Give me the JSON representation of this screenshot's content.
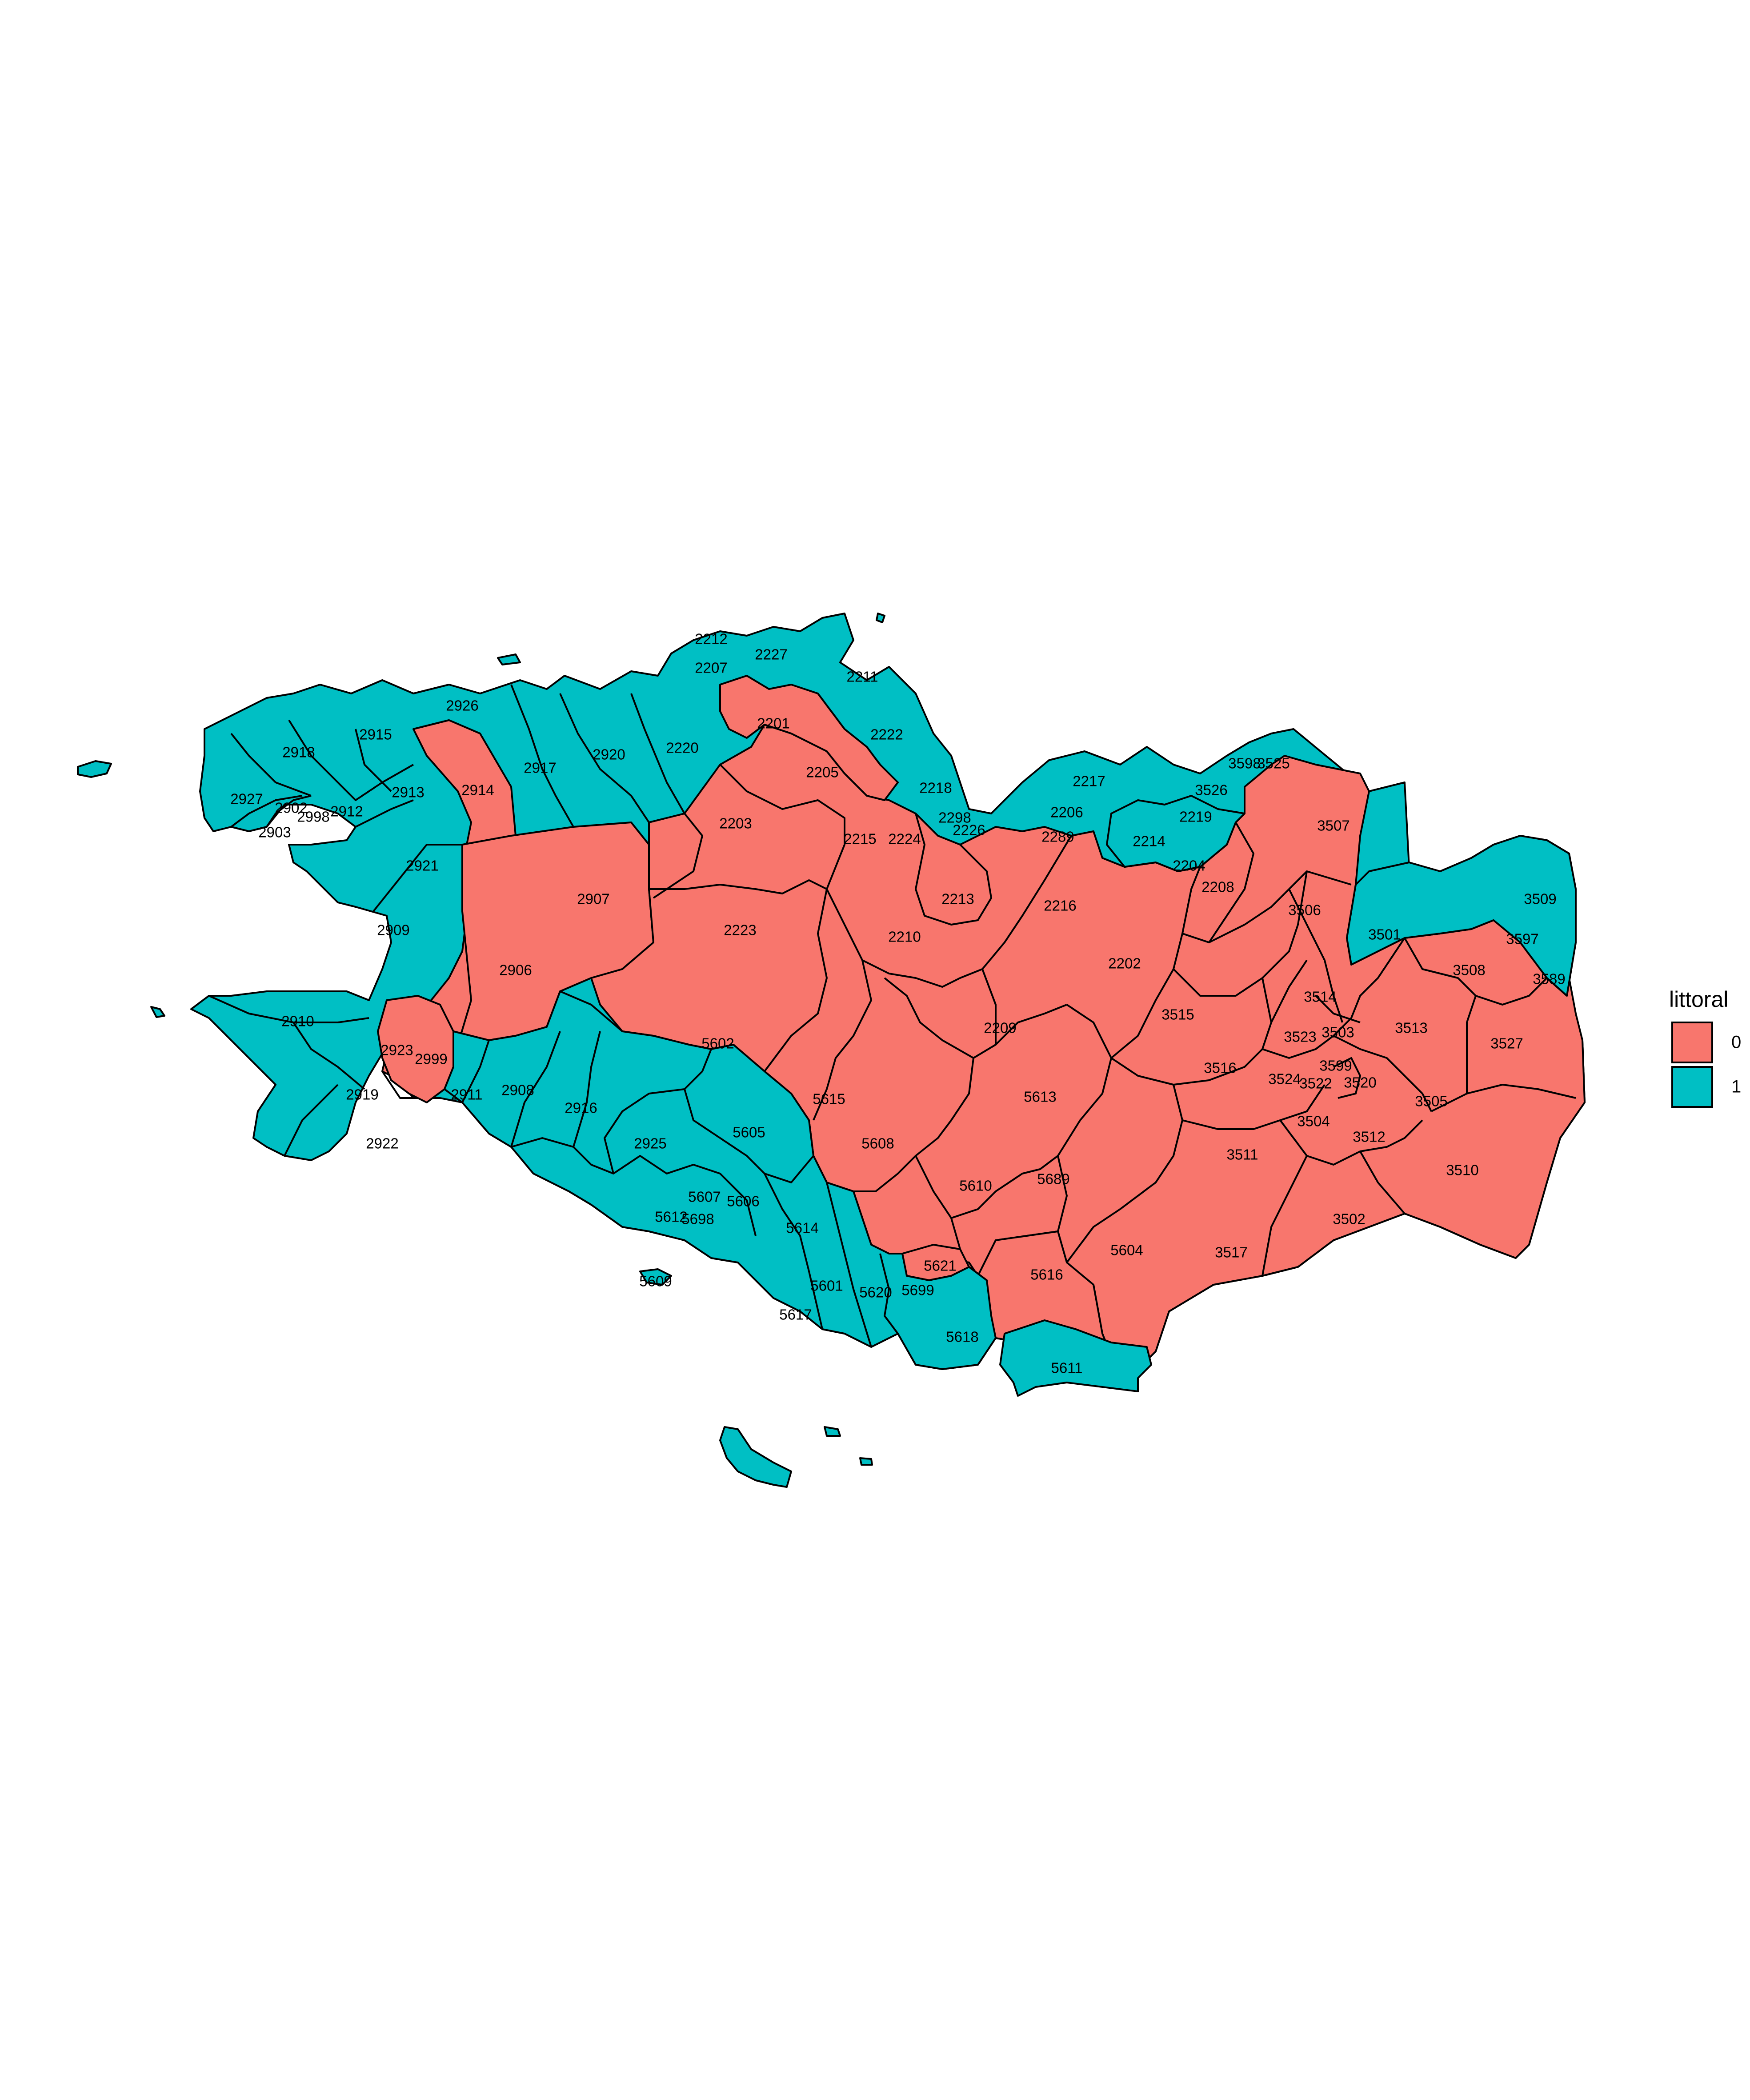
{
  "legend": {
    "title": "littoral",
    "entries": [
      {
        "label": "0",
        "color": "#F8766D"
      },
      {
        "label": "1",
        "color": "#00BFC4"
      }
    ]
  },
  "map": {
    "colors": {
      "0": "#F8766D",
      "1": "#00BFC4"
    },
    "regions": [
      {
        "code": "2212",
        "littoral": 1
      },
      {
        "code": "2227",
        "littoral": 1
      },
      {
        "code": "2207",
        "littoral": 1
      },
      {
        "code": "2211",
        "littoral": 1
      },
      {
        "code": "2201",
        "littoral": 0
      },
      {
        "code": "2222",
        "littoral": 1
      },
      {
        "code": "2205",
        "littoral": 0
      },
      {
        "code": "2926",
        "littoral": 1
      },
      {
        "code": "2915",
        "littoral": 1
      },
      {
        "code": "2918",
        "littoral": 1
      },
      {
        "code": "2917",
        "littoral": 1
      },
      {
        "code": "2920",
        "littoral": 1
      },
      {
        "code": "2220",
        "littoral": 1
      },
      {
        "code": "2914",
        "littoral": 0
      },
      {
        "code": "2913",
        "littoral": 1
      },
      {
        "code": "2927",
        "littoral": 1
      },
      {
        "code": "2902",
        "littoral": 1
      },
      {
        "code": "2998",
        "littoral": 1
      },
      {
        "code": "2912",
        "littoral": 1
      },
      {
        "code": "2903",
        "littoral": 1
      },
      {
        "code": "2921",
        "littoral": 1
      },
      {
        "code": "2203",
        "littoral": 0
      },
      {
        "code": "2215",
        "littoral": 0
      },
      {
        "code": "2224",
        "littoral": 0
      },
      {
        "code": "2218",
        "littoral": 1
      },
      {
        "code": "2298",
        "littoral": 1
      },
      {
        "code": "2226",
        "littoral": 1
      },
      {
        "code": "2217",
        "littoral": 1
      },
      {
        "code": "2206",
        "littoral": 1
      },
      {
        "code": "2289",
        "littoral": 1
      },
      {
        "code": "2214",
        "littoral": 1
      },
      {
        "code": "3598",
        "littoral": 1
      },
      {
        "code": "3525",
        "littoral": 1
      },
      {
        "code": "3526",
        "littoral": 1
      },
      {
        "code": "2219",
        "littoral": 1
      },
      {
        "code": "3507",
        "littoral": 1
      },
      {
        "code": "2907",
        "littoral": 0
      },
      {
        "code": "2909",
        "littoral": 1
      },
      {
        "code": "2223",
        "littoral": 0
      },
      {
        "code": "2213",
        "littoral": 0
      },
      {
        "code": "2210",
        "littoral": 0
      },
      {
        "code": "2216",
        "littoral": 0
      },
      {
        "code": "2204",
        "littoral": 0
      },
      {
        "code": "2208",
        "littoral": 0
      },
      {
        "code": "3506",
        "littoral": 0
      },
      {
        "code": "3509",
        "littoral": 1
      },
      {
        "code": "3501",
        "littoral": 1
      },
      {
        "code": "3597",
        "littoral": 0
      },
      {
        "code": "3589",
        "littoral": 0
      },
      {
        "code": "2906",
        "littoral": 0
      },
      {
        "code": "2202",
        "littoral": 0
      },
      {
        "code": "3508",
        "littoral": 0
      },
      {
        "code": "3514",
        "littoral": 0
      },
      {
        "code": "2910",
        "littoral": 1
      },
      {
        "code": "2923",
        "littoral": 0
      },
      {
        "code": "2999",
        "littoral": 0
      },
      {
        "code": "5602",
        "littoral": 0
      },
      {
        "code": "2209",
        "littoral": 0
      },
      {
        "code": "3515",
        "littoral": 0
      },
      {
        "code": "3523",
        "littoral": 0
      },
      {
        "code": "3503",
        "littoral": 0
      },
      {
        "code": "3513",
        "littoral": 0
      },
      {
        "code": "3527",
        "littoral": 0
      },
      {
        "code": "2919",
        "littoral": 1
      },
      {
        "code": "2911",
        "littoral": 1
      },
      {
        "code": "2908",
        "littoral": 1
      },
      {
        "code": "2916",
        "littoral": 1
      },
      {
        "code": "5615",
        "littoral": 0
      },
      {
        "code": "5613",
        "littoral": 0
      },
      {
        "code": "3516",
        "littoral": 0
      },
      {
        "code": "3524",
        "littoral": 0
      },
      {
        "code": "3599",
        "littoral": 0
      },
      {
        "code": "3522",
        "littoral": 0
      },
      {
        "code": "3520",
        "littoral": 0
      },
      {
        "code": "3505",
        "littoral": 0
      },
      {
        "code": "3504",
        "littoral": 0
      },
      {
        "code": "3512",
        "littoral": 0
      },
      {
        "code": "2922",
        "littoral": 1
      },
      {
        "code": "2925",
        "littoral": 1
      },
      {
        "code": "5605",
        "littoral": 1
      },
      {
        "code": "5608",
        "littoral": 0
      },
      {
        "code": "3511",
        "littoral": 0
      },
      {
        "code": "3510",
        "littoral": 0
      },
      {
        "code": "5610",
        "littoral": 0
      },
      {
        "code": "5689",
        "littoral": 0
      },
      {
        "code": "5607",
        "littoral": 1
      },
      {
        "code": "5606",
        "littoral": 1
      },
      {
        "code": "5612",
        "littoral": 1
      },
      {
        "code": "5698",
        "littoral": 1
      },
      {
        "code": "5614",
        "littoral": 1
      },
      {
        "code": "3502",
        "littoral": 0
      },
      {
        "code": "5604",
        "littoral": 0
      },
      {
        "code": "3517",
        "littoral": 0
      },
      {
        "code": "5621",
        "littoral": 0
      },
      {
        "code": "5616",
        "littoral": 0
      },
      {
        "code": "5609",
        "littoral": 1
      },
      {
        "code": "5601",
        "littoral": 1
      },
      {
        "code": "5620",
        "littoral": 1
      },
      {
        "code": "5699",
        "littoral": 1
      },
      {
        "code": "5617",
        "littoral": 1
      },
      {
        "code": "5618",
        "littoral": 1
      },
      {
        "code": "5611",
        "littoral": 1
      }
    ]
  }
}
